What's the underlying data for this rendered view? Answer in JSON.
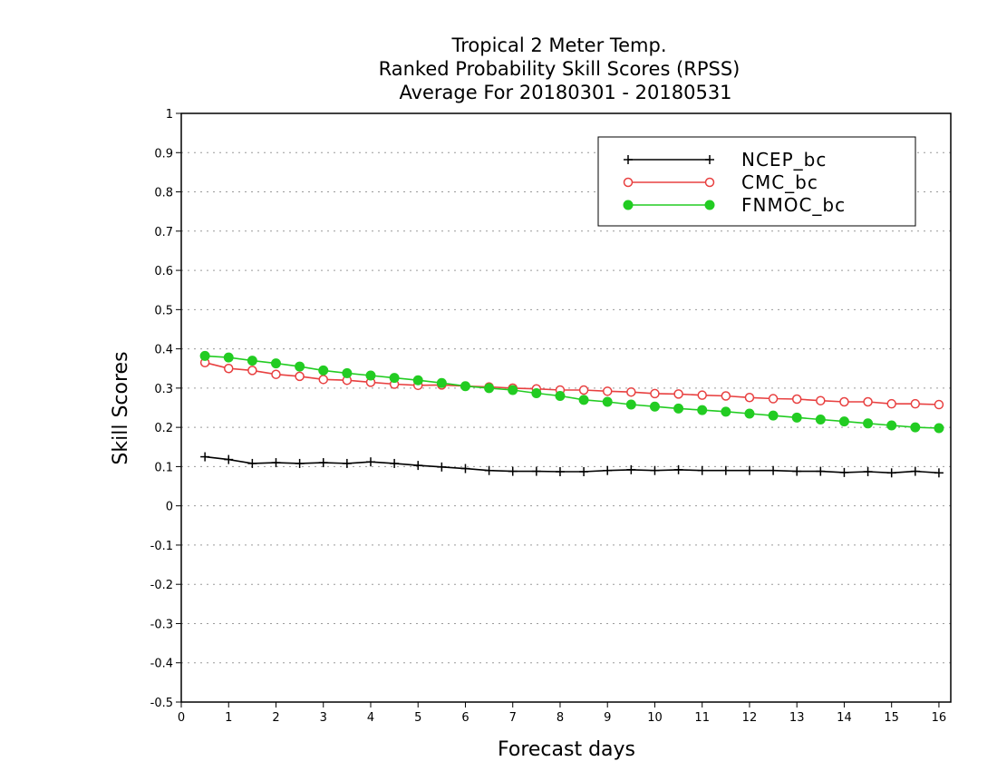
{
  "chart_data": {
    "type": "line",
    "title": [
      "Tropical 2 Meter Temp.",
      "Ranked Probability Skill Scores (RPSS)",
      "Average For 20180301 - 20180531"
    ],
    "xlabel": "Forecast days",
    "ylabel": "Skill Scores",
    "xlim": [
      0,
      16.25
    ],
    "ylim": [
      -0.5,
      1
    ],
    "xticks": [
      0,
      1,
      2,
      3,
      4,
      5,
      6,
      7,
      8,
      9,
      10,
      11,
      12,
      13,
      14,
      15,
      16
    ],
    "xtick_labels": [
      "0",
      "1",
      "2",
      "3",
      "4",
      "5",
      "6",
      "7",
      "8",
      "9",
      "10",
      "11",
      "12",
      "13",
      "14",
      "15",
      "16"
    ],
    "yticks": [
      -0.5,
      -0.4,
      -0.3,
      -0.2,
      -0.1,
      0,
      0.1,
      0.2,
      0.3,
      0.4,
      0.5,
      0.6,
      0.7,
      0.8,
      0.9,
      1
    ],
    "ytick_labels": [
      "-0.5",
      "-0.4",
      "-0.3",
      "-0.2",
      "-0.1",
      "0",
      "0.1",
      "0.2",
      "0.3",
      "0.4",
      "0.5",
      "0.6",
      "0.7",
      "0.8",
      "0.9",
      "1"
    ],
    "grid": true,
    "legend_position": "top-right",
    "x": [
      0.5,
      1.0,
      1.5,
      2.0,
      2.5,
      3.0,
      3.5,
      4.0,
      4.5,
      5.0,
      5.5,
      6.0,
      6.5,
      7.0,
      7.5,
      8.0,
      8.5,
      9.0,
      9.5,
      10.0,
      10.5,
      11.0,
      11.5,
      12.0,
      12.5,
      13.0,
      13.5,
      14.0,
      14.5,
      15.0,
      15.5,
      16.0
    ],
    "series": [
      {
        "name": "NCEP_bc",
        "color": "#000000",
        "marker": "plus",
        "values": [
          0.125,
          0.118,
          0.108,
          0.11,
          0.108,
          0.11,
          0.108,
          0.112,
          0.108,
          0.103,
          0.099,
          0.095,
          0.09,
          0.088,
          0.088,
          0.087,
          0.087,
          0.09,
          0.092,
          0.09,
          0.092,
          0.09,
          0.09,
          0.09,
          0.09,
          0.088,
          0.088,
          0.085,
          0.087,
          0.084,
          0.088,
          0.084
        ]
      },
      {
        "name": "CMC_bc",
        "color": "#e84040",
        "marker": "open-circle",
        "values": [
          0.365,
          0.35,
          0.345,
          0.335,
          0.33,
          0.322,
          0.32,
          0.315,
          0.31,
          0.307,
          0.308,
          0.305,
          0.303,
          0.3,
          0.298,
          0.295,
          0.295,
          0.292,
          0.29,
          0.286,
          0.285,
          0.282,
          0.28,
          0.276,
          0.273,
          0.272,
          0.268,
          0.265,
          0.265,
          0.26,
          0.26,
          0.258
        ]
      },
      {
        "name": "FNMOC_bc",
        "color": "#22cc22",
        "marker": "filled-circle",
        "values": [
          0.382,
          0.378,
          0.37,
          0.363,
          0.355,
          0.345,
          0.338,
          0.332,
          0.326,
          0.32,
          0.313,
          0.305,
          0.3,
          0.295,
          0.287,
          0.28,
          0.27,
          0.265,
          0.258,
          0.253,
          0.248,
          0.244,
          0.24,
          0.235,
          0.23,
          0.225,
          0.22,
          0.215,
          0.21,
          0.205,
          0.2,
          0.198
        ]
      }
    ]
  }
}
